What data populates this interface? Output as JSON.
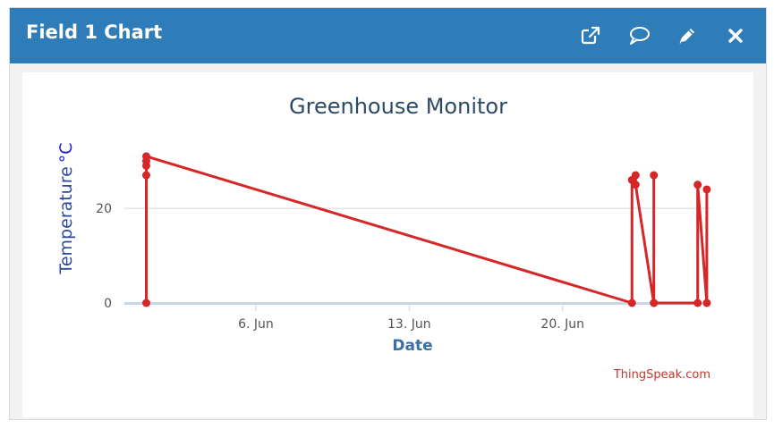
{
  "panel": {
    "title": "Field 1 Chart",
    "icons": [
      "external-link-icon",
      "comment-icon",
      "pencil-icon",
      "close-icon"
    ],
    "header_color": "#2e7cb8"
  },
  "chart_data": {
    "type": "line",
    "title": "Greenhouse Monitor",
    "xlabel": "Date",
    "ylabel": "Temperature",
    "ylabel_unit": "°C",
    "credit": "ThingSpeak.com",
    "x_ticks": [
      "6. Jun",
      "13. Jun",
      "20. Jun"
    ],
    "x_tick_dates": [
      "2021-06-06",
      "2021-06-13",
      "2021-06-20"
    ],
    "y_ticks": [
      0,
      20
    ],
    "ylim": [
      0,
      34
    ],
    "xlim": [
      "2021-05-31",
      "2021-06-26T18:00"
    ],
    "line_color": "#d62728",
    "series": [
      {
        "values": [
          {
            "x": "2021-06-01T00:00",
            "y": 0
          },
          {
            "x": "2021-06-01T00:00",
            "y": 27
          },
          {
            "x": "2021-06-01T00:00",
            "y": 29
          },
          {
            "x": "2021-06-01T00:00",
            "y": 30
          },
          {
            "x": "2021-06-01T00:00",
            "y": 31
          },
          {
            "x": "2021-06-23T04:00",
            "y": 0
          },
          {
            "x": "2021-06-23T04:00",
            "y": 26
          },
          {
            "x": "2021-06-23T08:00",
            "y": 27
          },
          {
            "x": "2021-06-23T08:00",
            "y": 25
          },
          {
            "x": "2021-06-24T04:00",
            "y": 0
          },
          {
            "x": "2021-06-24T04:00",
            "y": 27
          },
          {
            "x": "2021-06-24T04:00",
            "y": 0
          },
          {
            "x": "2021-06-26T04:00",
            "y": 0
          },
          {
            "x": "2021-06-26T04:00",
            "y": 25
          },
          {
            "x": "2021-06-26T14:00",
            "y": 0
          },
          {
            "x": "2021-06-26T14:00",
            "y": 24
          }
        ]
      }
    ]
  }
}
